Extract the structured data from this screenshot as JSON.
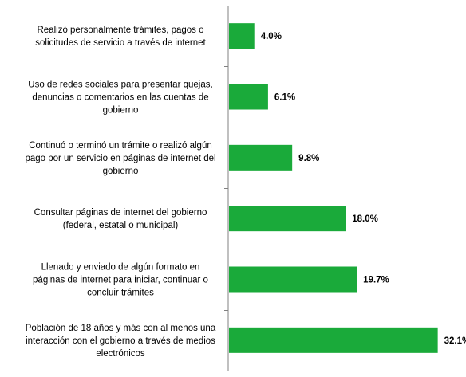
{
  "chart_data": {
    "type": "bar",
    "orientation": "horizontal",
    "title": "",
    "xlabel": "",
    "ylabel": "",
    "bar_color": "#1AAA3A",
    "axis_color": "#808080",
    "xlim": [
      0,
      33
    ],
    "grid": false,
    "categories": [
      [
        "Realizó personalmente trámites, pagos o",
        "solicitudes de servicio a través de internet"
      ],
      [
        "Uso de redes sociales para presentar quejas,",
        "denuncias o comentarios en las cuentas de",
        "gobierno"
      ],
      [
        "Continuó o terminó un trámite o realizó algún",
        "pago por un servicio en páginas de internet del",
        "gobierno"
      ],
      [
        "Consultar páginas de internet del gobierno",
        "(federal, estatal o municipal)"
      ],
      [
        "Llenado y enviado  de algún formato en",
        "páginas de internet para iniciar, continuar o",
        "concluir trámites"
      ],
      [
        "Población de 18 años y más con al menos una",
        "interacción con el gobierno a través de medios",
        "electrónicos"
      ]
    ],
    "values": [
      4.0,
      6.1,
      9.8,
      18.0,
      19.7,
      32.1
    ],
    "value_labels": [
      "4.0%",
      "6.1%",
      "9.8%",
      "18.0%",
      "19.7%",
      "32.1%"
    ]
  }
}
